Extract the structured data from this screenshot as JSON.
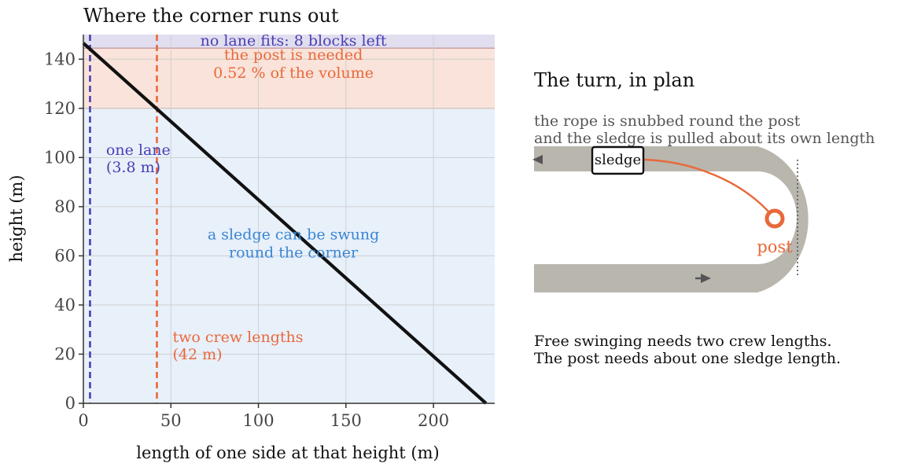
{
  "chart_data": {
    "type": "line",
    "title": "Where the corner runs out",
    "xlabel": "length of one side at that height (m)",
    "ylabel": "height (m)",
    "xlim": [
      0,
      235
    ],
    "ylim": [
      0,
      150
    ],
    "xticks": [
      0,
      50,
      100,
      150,
      200
    ],
    "yticks": [
      0,
      20,
      40,
      60,
      80,
      100,
      120,
      140
    ],
    "grid": true,
    "series": [
      {
        "points": [
          [
            0,
            146.5
          ],
          [
            230,
            0
          ]
        ],
        "color": "#111111"
      }
    ],
    "bands": [
      {
        "y_from": 0,
        "y_to": 120,
        "color": "#e8f0fa",
        "lines": [
          "a sledge can be swung",
          "round the corner"
        ],
        "text_color": "#3a86d4",
        "label_at": [
          120,
          65
        ]
      },
      {
        "y_from": 120,
        "y_to": 144.5,
        "color": "#f9e3da",
        "lines": [
          "the post is needed",
          "0.52 % of the volume"
        ],
        "text_color": "#e8693a",
        "label_at": [
          120,
          138
        ]
      },
      {
        "y_from": 144.5,
        "y_to": 150,
        "color": "#e1def0",
        "lines": [
          "no lane fits: 8 blocks left"
        ],
        "text_color": "#4a3fb3",
        "label_at": [
          120,
          147.5
        ]
      }
    ],
    "vlines": [
      {
        "x": 3.8,
        "color": "#4a3fb3",
        "lines": [
          "one lane",
          "(3.8 m)"
        ],
        "label_at": [
          13,
          101
        ]
      },
      {
        "x": 42,
        "color": "#e8693a",
        "lines": [
          "two crew lengths",
          "(42 m)"
        ],
        "label_at": [
          51,
          25
        ]
      }
    ]
  },
  "plan": {
    "title": "The turn, in plan",
    "subtitle_lines": [
      "the rope is snubbed round the post",
      "and the sledge is pulled about its own length"
    ],
    "sledge_label": "sledge",
    "post_label": "post",
    "caption_lines": [
      "Free swinging needs two crew lengths.",
      "The post needs about one sledge length."
    ],
    "colors": {
      "track": "#b9b6ae",
      "rope": "#e8693a",
      "text": "#555555",
      "arrow": "#555555"
    }
  }
}
